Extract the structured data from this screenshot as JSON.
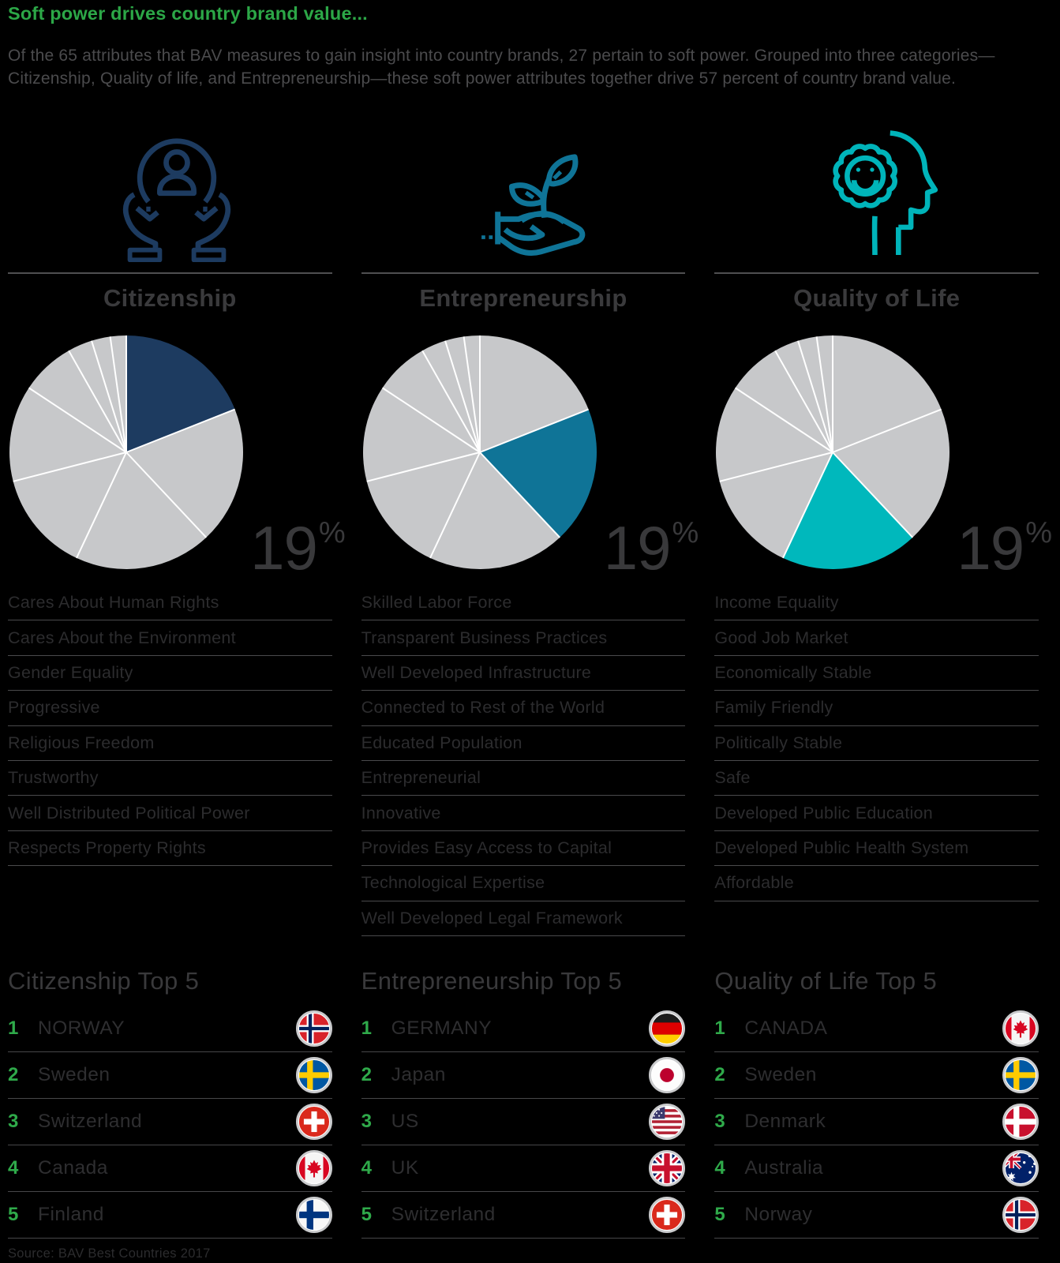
{
  "page": {
    "title": "Soft power drives country brand value...",
    "intro": "Of the 65 attributes that BAV measures to gain insight into country brands, 27 pertain to soft power. Grouped into three categories—Citizenship, Quality of life, and Entrepreneurship—these soft power attributes together drive 57 percent of country brand value.",
    "source": "Source: BAV Best Countries 2017"
  },
  "colors": {
    "title_green": "#2ca747",
    "rank_green": "#2faa4a",
    "citizenship_navy": "#1d3b60",
    "entrepreneurship_blue": "#0f7497",
    "quality_teal": "#00b8bc",
    "pie_gray": "#c7c8ca",
    "text_dark": "#2c2c2e",
    "divider_gray": "#4a4a4c"
  },
  "columns": [
    {
      "id": "citizenship",
      "title": "Citizenship",
      "icon": "hands-holding-person-icon",
      "accent": "#1d3b60",
      "percent": "19",
      "percent_sign": "%",
      "attributes": [
        "Cares About Human Rights",
        "Cares About the Environment",
        "Gender Equality",
        "Progressive",
        "Religious Freedom",
        "Trustworthy",
        "Well Distributed Political Power",
        "Respects Property Rights"
      ],
      "top5_heading": "Citizenship Top 5",
      "top5": [
        {
          "rank": "1",
          "country": "NORWAY",
          "flag": "norway"
        },
        {
          "rank": "2",
          "country": "Sweden",
          "flag": "sweden"
        },
        {
          "rank": "3",
          "country": "Switzerland",
          "flag": "switzerland"
        },
        {
          "rank": "4",
          "country": "Canada",
          "flag": "canada"
        },
        {
          "rank": "5",
          "country": "Finland",
          "flag": "finland"
        }
      ]
    },
    {
      "id": "entrepreneurship",
      "title": "Entrepreneurship",
      "icon": "hand-sprout-icon",
      "accent": "#0f7497",
      "percent": "19",
      "percent_sign": "%",
      "attributes": [
        "Skilled Labor Force",
        "Transparent Business Practices",
        "Well Developed Infrastructure",
        "Connected to Rest of the World",
        "Educated Population",
        "Entrepreneurial",
        "Innovative",
        "Provides Easy Access to Capital",
        "Technological Expertise",
        "Well Developed Legal Framework"
      ],
      "top5_heading": "Entrepreneurship Top 5",
      "top5": [
        {
          "rank": "1",
          "country": "GERMANY",
          "flag": "germany"
        },
        {
          "rank": "2",
          "country": "Japan",
          "flag": "japan"
        },
        {
          "rank": "3",
          "country": "US",
          "flag": "us"
        },
        {
          "rank": "4",
          "country": "UK",
          "flag": "uk"
        },
        {
          "rank": "5",
          "country": "Switzerland",
          "flag": "switzerland"
        }
      ]
    },
    {
      "id": "quality-of-life",
      "title": "Quality of Life",
      "icon": "head-smile-icon",
      "accent": "#00b8bc",
      "percent": "19",
      "percent_sign": "%",
      "attributes": [
        "Income Equality",
        "Good Job Market",
        "Economically Stable",
        "Family Friendly",
        "Politically Stable",
        "Safe",
        "Developed Public Education",
        "Developed Public Health System",
        "Affordable"
      ],
      "top5_heading": "Quality of Life Top 5",
      "top5": [
        {
          "rank": "1",
          "country": "CANADA",
          "flag": "canada"
        },
        {
          "rank": "2",
          "country": "Sweden",
          "flag": "sweden"
        },
        {
          "rank": "3",
          "country": "Denmark",
          "flag": "denmark"
        },
        {
          "rank": "4",
          "country": "Australia",
          "flag": "australia"
        },
        {
          "rank": "5",
          "country": "Norway",
          "flag": "norway"
        }
      ]
    }
  ],
  "chart_data": [
    {
      "type": "pie",
      "title": "Citizenship",
      "percent_label": "19%",
      "highlight_index": 0,
      "highlight_color": "#1d3b60",
      "base_color": "#c7c8ca",
      "values": [
        19,
        19,
        19,
        14,
        13.3,
        7.5,
        3.4,
        2.6,
        2.2
      ],
      "note": "highlighted slice = 19% share of country brand value driven by Citizenship"
    },
    {
      "type": "pie",
      "title": "Entrepreneurship",
      "percent_label": "19%",
      "highlight_index": 1,
      "highlight_color": "#0f7497",
      "base_color": "#c7c8ca",
      "values": [
        19,
        19,
        19,
        14,
        13.3,
        7.5,
        3.4,
        2.6,
        2.2
      ],
      "note": "highlighted slice = 19% share of country brand value driven by Entrepreneurship"
    },
    {
      "type": "pie",
      "title": "Quality of Life",
      "percent_label": "19%",
      "highlight_index": 2,
      "highlight_color": "#00b8bc",
      "base_color": "#c7c8ca",
      "values": [
        19,
        19,
        19,
        14,
        13.3,
        7.5,
        3.4,
        2.6,
        2.2
      ],
      "note": "highlighted slice = 19% share of country brand value driven by Quality of Life"
    }
  ]
}
